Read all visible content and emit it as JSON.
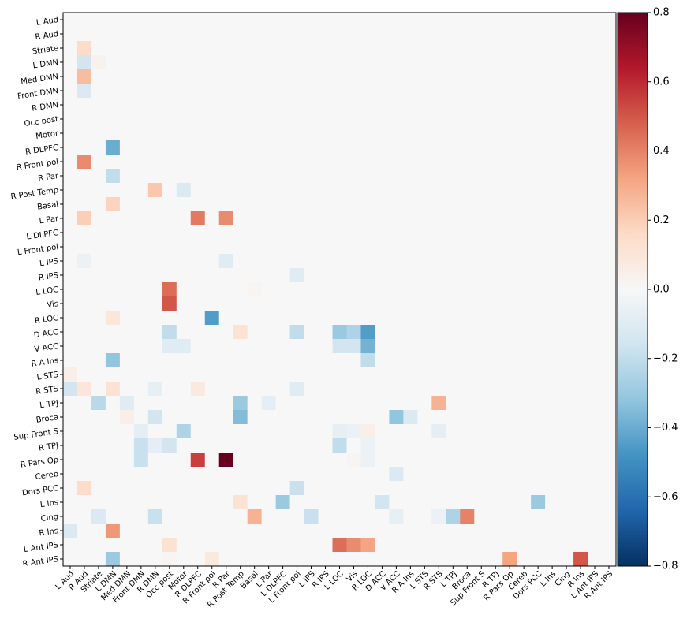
{
  "chart_data": {
    "type": "heatmap",
    "categories": [
      "L Aud",
      "R Aud",
      "Striate",
      "L DMN",
      "Med DMN",
      "Front DMN",
      "R DMN",
      "Occ post",
      "Motor",
      "R DLPFC",
      "R Front pol",
      "R Par",
      "R Post Temp",
      "Basal",
      "L Par",
      "L DLPFC",
      "L Front pol",
      "L IPS",
      "R IPS",
      "L LOC",
      "Vis",
      "R LOC",
      "D ACC",
      "V ACC",
      "R A Ins",
      "L STS",
      "R STS",
      "L TPJ",
      "Broca",
      "Sup Front S",
      "R TPJ",
      "R Pars Op",
      "Cereb",
      "Dors PCC",
      "L Ins",
      "Cing",
      "R Ins",
      "L Ant IPS",
      "R Ant IPS"
    ],
    "colormap": "RdBu_r",
    "zlim": [
      -0.8,
      0.8
    ],
    "zticks": [
      {
        "value": -0.8,
        "label": "−0.8"
      },
      {
        "value": -0.6,
        "label": "−0.6"
      },
      {
        "value": -0.4,
        "label": "−0.4"
      },
      {
        "value": -0.2,
        "label": "−0.2"
      },
      {
        "value": 0,
        "label": "0.0"
      },
      0.2,
      0.4,
      0.6,
      0.8
    ],
    "values": [
      [
        0,
        0,
        0,
        0,
        0,
        0,
        0,
        0,
        0,
        0,
        0,
        0,
        0,
        0,
        0,
        0,
        0,
        0,
        0,
        0,
        0,
        0,
        0,
        0,
        0,
        0,
        0,
        0,
        0,
        0,
        0,
        0,
        0,
        0,
        0,
        0,
        0,
        0,
        0
      ],
      [
        0,
        0,
        0,
        0,
        0,
        0,
        0,
        0,
        0,
        0,
        0,
        0,
        0,
        0,
        0,
        0,
        0,
        0,
        0,
        0,
        0,
        0,
        0,
        0,
        0,
        0,
        0,
        0,
        0,
        0,
        0,
        0,
        0,
        0,
        0,
        0,
        0,
        0,
        0
      ],
      [
        0,
        0.15,
        0,
        0,
        0,
        0,
        0,
        0,
        0,
        0,
        0,
        0,
        0,
        0,
        0,
        0,
        0,
        0,
        0,
        0,
        0,
        0,
        0,
        0,
        0,
        0,
        0,
        0,
        0,
        0,
        0,
        0,
        0,
        0,
        0,
        0,
        0,
        0,
        0
      ],
      [
        0,
        -0.15,
        0.03,
        0,
        0,
        0,
        0,
        0,
        0,
        0,
        0,
        0,
        0,
        0,
        0,
        0,
        0,
        0,
        0,
        0,
        0,
        0,
        0,
        0,
        0,
        0,
        0,
        0,
        0,
        0,
        0,
        0,
        0,
        0,
        0,
        0,
        0,
        0,
        0
      ],
      [
        0,
        0.25,
        0,
        0,
        0,
        0,
        0,
        0,
        0,
        0,
        0,
        0,
        0,
        0,
        0,
        0,
        0,
        0,
        0,
        0,
        0,
        0,
        0,
        0,
        0,
        0,
        0,
        0,
        0,
        0,
        0,
        0,
        0,
        0,
        0,
        0,
        0,
        0,
        0
      ],
      [
        0,
        -0.12,
        0,
        0,
        0,
        0,
        0,
        0,
        0,
        0,
        0,
        0,
        0,
        0,
        0,
        0,
        0,
        0,
        0,
        0,
        0,
        0,
        0,
        0,
        0,
        0,
        0,
        0,
        0,
        0,
        0,
        0,
        0,
        0,
        0,
        0,
        0,
        0,
        0
      ],
      [
        0,
        0,
        0,
        0,
        0,
        0,
        0,
        0,
        0,
        0,
        0,
        0,
        0,
        0,
        0,
        0,
        0,
        0,
        0,
        0,
        0,
        0,
        0,
        0,
        0,
        0,
        0,
        0,
        0,
        0,
        0,
        0,
        0,
        0,
        0,
        0,
        0,
        0,
        0
      ],
      [
        0,
        0,
        0,
        0,
        0,
        0,
        0,
        0,
        0,
        0,
        0,
        0,
        0,
        0,
        0,
        0,
        0,
        0,
        0,
        0,
        0,
        0,
        0,
        0,
        0,
        0,
        0,
        0,
        0,
        0,
        0,
        0,
        0,
        0,
        0,
        0,
        0,
        0,
        0
      ],
      [
        0,
        0,
        0,
        0,
        0,
        0,
        0,
        0,
        0,
        0,
        0,
        0,
        0,
        0,
        0,
        0,
        0,
        0,
        0,
        0,
        0,
        0,
        0,
        0,
        0,
        0,
        0,
        0,
        0,
        0,
        0,
        0,
        0,
        0,
        0,
        0,
        0,
        0,
        0
      ],
      [
        0,
        0,
        0,
        -0.4,
        0,
        0,
        0,
        0,
        0,
        0,
        0,
        0,
        0,
        0,
        0,
        0,
        0,
        0,
        0,
        0,
        0,
        0,
        0,
        0,
        0,
        0,
        0,
        0,
        0,
        0,
        0,
        0,
        0,
        0,
        0,
        0,
        0,
        0,
        0
      ],
      [
        0,
        0.38,
        0,
        0,
        0,
        0,
        0,
        0,
        0,
        0,
        0,
        0,
        0,
        0,
        0,
        0,
        0,
        0,
        0,
        0,
        0,
        0,
        0,
        0,
        0,
        0,
        0,
        0,
        0,
        0,
        0,
        0,
        0,
        0,
        0,
        0,
        0,
        0,
        0
      ],
      [
        0,
        0,
        0,
        -0.2,
        0,
        0,
        0,
        0,
        0,
        0,
        0,
        0,
        0,
        0,
        0,
        0,
        0,
        0,
        0,
        0,
        0,
        0,
        0,
        0,
        0,
        0,
        0,
        0,
        0,
        0,
        0,
        0,
        0,
        0,
        0,
        0,
        0,
        0,
        0
      ],
      [
        0,
        0,
        0,
        0,
        0,
        0,
        0.22,
        0,
        -0.12,
        0,
        0,
        0,
        0,
        0,
        0,
        0,
        0,
        0,
        0,
        0,
        0,
        0,
        0,
        0,
        0,
        0,
        0,
        0,
        0,
        0,
        0,
        0,
        0,
        0,
        0,
        0,
        0,
        0,
        0
      ],
      [
        0,
        0,
        0,
        0.18,
        0,
        0,
        0,
        0,
        0,
        0,
        0,
        0,
        0,
        0,
        0,
        0,
        0,
        0,
        0,
        0,
        0,
        0,
        0,
        0,
        0,
        0,
        0,
        0,
        0,
        0,
        0,
        0,
        0,
        0,
        0,
        0,
        0,
        0,
        0
      ],
      [
        0,
        0.2,
        0,
        0,
        0,
        0,
        0,
        0,
        0,
        0.42,
        0,
        0.38,
        0,
        0,
        0,
        0,
        0,
        0,
        0,
        0,
        0,
        0,
        0,
        0,
        0,
        0,
        0,
        0,
        0,
        0,
        0,
        0,
        0,
        0,
        0,
        0,
        0,
        0,
        0
      ],
      [
        0,
        0,
        0,
        0,
        0,
        0,
        0,
        0,
        0,
        0,
        0,
        0,
        0,
        0,
        0,
        0,
        0,
        0,
        0,
        0,
        0,
        0,
        0,
        0,
        0,
        0,
        0,
        0,
        0,
        0,
        0,
        0,
        0,
        0,
        0,
        0,
        0,
        0,
        0
      ],
      [
        0,
        0,
        0,
        0,
        0,
        0,
        0,
        0,
        0,
        0,
        0,
        0,
        0,
        0,
        0,
        0,
        0,
        0,
        0,
        0,
        0,
        0,
        0,
        0,
        0,
        0,
        0,
        0,
        0,
        0,
        0,
        0,
        0,
        0,
        0,
        0,
        0,
        0,
        0
      ],
      [
        0,
        -0.05,
        0,
        0,
        0,
        0,
        0,
        0,
        0,
        0,
        0,
        -0.1,
        0,
        0,
        0,
        0,
        0,
        0,
        0,
        0,
        0,
        0,
        0,
        0,
        0,
        0,
        0,
        0,
        0,
        0,
        0,
        0,
        0,
        0,
        0,
        0,
        0,
        0,
        0
      ],
      [
        0,
        0,
        0,
        0,
        0,
        0,
        0,
        0,
        0,
        0,
        0,
        0,
        0,
        0,
        0,
        0,
        -0.1,
        0,
        0,
        0,
        0,
        0,
        0,
        0,
        0,
        0,
        0,
        0,
        0,
        0,
        0,
        0,
        0,
        0,
        0,
        0,
        0,
        0,
        0
      ],
      [
        0,
        0,
        0,
        0,
        0,
        0,
        0,
        0.45,
        0,
        0,
        0,
        0,
        0,
        0.02,
        0,
        0,
        0,
        0,
        0,
        0,
        0,
        0,
        0,
        0,
        0,
        0,
        0,
        0,
        0,
        0,
        0,
        0,
        0,
        0,
        0,
        0,
        0,
        0,
        0
      ],
      [
        0,
        0,
        0,
        0,
        0,
        0,
        0,
        0.5,
        0,
        0,
        0,
        0,
        0,
        0,
        0,
        0,
        0,
        0,
        0,
        0,
        0,
        0,
        0,
        0,
        0,
        0,
        0,
        0,
        0,
        0,
        0,
        0,
        0,
        0,
        0,
        0,
        0,
        0,
        0
      ],
      [
        0,
        0,
        0,
        0.1,
        0,
        0,
        0,
        0,
        0,
        0,
        -0.45,
        0,
        0,
        0,
        0,
        0,
        0,
        0,
        0,
        0,
        0,
        0,
        0,
        0,
        0,
        0,
        0,
        0,
        0,
        0,
        0,
        0,
        0,
        0,
        0,
        0,
        0,
        0,
        0
      ],
      [
        0,
        0,
        0,
        0,
        0,
        0,
        0,
        -0.2,
        0,
        0,
        0,
        0,
        0.12,
        0,
        0,
        0,
        -0.2,
        0,
        0,
        -0.3,
        -0.25,
        -0.45,
        0,
        0,
        0,
        0,
        0,
        0,
        0,
        0,
        0,
        0,
        0,
        0,
        0,
        0,
        0,
        0,
        0
      ],
      [
        0,
        0,
        0,
        0,
        0,
        0,
        0,
        -0.1,
        -0.1,
        0,
        0,
        0,
        0,
        0,
        0,
        0,
        0,
        0,
        0,
        -0.15,
        -0.15,
        -0.38,
        0,
        0,
        0,
        0,
        0,
        0,
        0,
        0,
        0,
        0,
        0,
        0,
        0,
        0,
        0,
        0,
        0
      ],
      [
        0,
        0,
        0,
        -0.32,
        0,
        0,
        0,
        0,
        0,
        0,
        0,
        0,
        0,
        0,
        0,
        0,
        0,
        0,
        0,
        0,
        0,
        -0.2,
        0,
        0,
        0,
        0,
        0,
        0,
        0,
        0,
        0,
        0,
        0,
        0,
        0,
        0,
        0,
        0,
        0
      ],
      [
        0.05,
        0,
        0,
        0,
        0,
        0,
        0,
        0,
        0,
        0,
        0,
        0,
        0,
        0,
        0,
        0,
        0,
        0,
        0,
        0,
        0,
        0,
        0,
        0,
        0,
        0,
        0,
        0,
        0,
        0,
        0,
        0,
        0,
        0,
        0,
        0,
        0,
        0,
        0
      ],
      [
        -0.15,
        0.1,
        0,
        0.12,
        0,
        0,
        -0.07,
        0,
        0,
        0.08,
        0,
        0,
        0,
        0,
        0,
        0,
        -0.1,
        0,
        0,
        0,
        0,
        0,
        0,
        0,
        0,
        0,
        0,
        0,
        0,
        0,
        0,
        0,
        0,
        0,
        0,
        0,
        0,
        0,
        0
      ],
      [
        0,
        0,
        -0.22,
        0,
        -0.1,
        0,
        0,
        0,
        0,
        0,
        0,
        0,
        -0.3,
        0,
        -0.08,
        0,
        0,
        0,
        0,
        0,
        0,
        0,
        0,
        0,
        0,
        0,
        0.28,
        0,
        0,
        0,
        0,
        0,
        0,
        0,
        0,
        0,
        0,
        0,
        0
      ],
      [
        0,
        0,
        0,
        0,
        0.05,
        0,
        -0.15,
        0,
        0,
        0,
        0,
        0,
        -0.35,
        0,
        0,
        0,
        0,
        0,
        0,
        0,
        0,
        0,
        0,
        -0.32,
        -0.12,
        0,
        0,
        0,
        0,
        0,
        0,
        0,
        0,
        0,
        0,
        0,
        0,
        0,
        0
      ],
      [
        0,
        0,
        0,
        0,
        0,
        -0.08,
        0,
        0,
        -0.25,
        0,
        0,
        0,
        0,
        0,
        0,
        0,
        0,
        0,
        0,
        -0.07,
        -0.05,
        0.05,
        0,
        0,
        0,
        0,
        -0.08,
        0,
        0,
        0,
        0,
        0,
        0,
        0,
        0,
        0,
        0,
        0,
        0
      ],
      [
        0,
        0,
        0,
        0,
        0,
        -0.18,
        -0.08,
        -0.15,
        0,
        0,
        0,
        0,
        0,
        0,
        0,
        0,
        0,
        0,
        0,
        -0.2,
        0,
        -0.05,
        0,
        0,
        0,
        0,
        0,
        0,
        0,
        0,
        0,
        0,
        0,
        0,
        0,
        0,
        0,
        0,
        0
      ],
      [
        0,
        0,
        0,
        0,
        0,
        -0.18,
        0,
        0,
        0,
        0.55,
        0,
        0.8,
        0,
        0,
        0,
        0,
        0,
        0,
        0,
        0,
        0.02,
        -0.05,
        0,
        0,
        0,
        0,
        0,
        0,
        0,
        0,
        0,
        0,
        0,
        0,
        0,
        0,
        0,
        0,
        0
      ],
      [
        0,
        0,
        0,
        0,
        0,
        0,
        0,
        0,
        0,
        0,
        0,
        0,
        0,
        0,
        0,
        0,
        0,
        0,
        0,
        0,
        0,
        0,
        0,
        -0.12,
        0,
        0,
        0,
        0,
        0,
        0,
        0,
        0,
        0,
        0,
        0,
        0,
        0,
        0,
        0
      ],
      [
        0,
        0.15,
        0,
        0,
        0,
        0,
        0,
        0,
        0,
        0,
        0,
        0,
        0,
        0,
        0,
        0,
        -0.18,
        0,
        0,
        0,
        0,
        0,
        0,
        0,
        0,
        0,
        0,
        0,
        0,
        0,
        0,
        0,
        0,
        0,
        0,
        0,
        0,
        0,
        0
      ],
      [
        0,
        0,
        0,
        0,
        0,
        0,
        0,
        0,
        0,
        0,
        0,
        0,
        0.12,
        0,
        0,
        -0.3,
        0,
        0,
        0,
        0,
        0,
        0,
        -0.15,
        0,
        0,
        0,
        0,
        0,
        0,
        0,
        0,
        0,
        0,
        -0.3,
        0,
        0,
        0,
        0,
        0
      ],
      [
        0,
        0,
        -0.12,
        0,
        0,
        0,
        -0.18,
        0,
        0,
        0,
        0,
        0,
        0,
        0.28,
        0,
        0,
        0,
        -0.18,
        0,
        0,
        0,
        0,
        0,
        -0.07,
        0,
        0,
        -0.05,
        -0.25,
        0.4,
        0,
        0,
        0,
        0,
        0,
        0,
        0,
        0,
        0,
        0
      ],
      [
        -0.12,
        0,
        0,
        0.35,
        0,
        0,
        0,
        0,
        0,
        0,
        0,
        0,
        0,
        0,
        0,
        0,
        0,
        0,
        0,
        0,
        0,
        0,
        0,
        0,
        0,
        0,
        0,
        0,
        0,
        0,
        0,
        0,
        0,
        0,
        0,
        0,
        0,
        0,
        0
      ],
      [
        0,
        0,
        0,
        0,
        0,
        0,
        0,
        0.12,
        0,
        0,
        0,
        0,
        0,
        0,
        0,
        0,
        0,
        0,
        0,
        0.45,
        0.38,
        0.32,
        0,
        0,
        0,
        0,
        0,
        0,
        0,
        0,
        0,
        0,
        0,
        0,
        0,
        0,
        0,
        0,
        0
      ],
      [
        0,
        0,
        0,
        -0.3,
        0,
        0,
        0,
        0.02,
        0,
        0,
        0.08,
        0,
        0,
        0,
        0,
        0,
        0,
        0,
        0,
        0,
        0,
        0,
        0,
        0,
        0,
        0,
        0,
        0,
        0,
        0,
        0,
        0.32,
        0,
        0,
        0,
        0,
        0.5,
        0,
        0
      ]
    ]
  }
}
